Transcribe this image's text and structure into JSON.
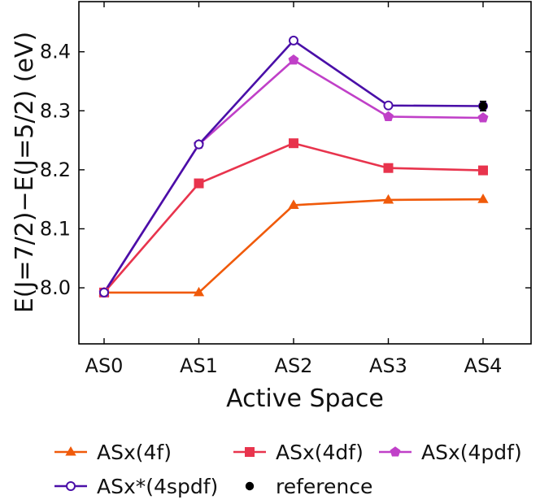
{
  "chart_data": {
    "type": "line",
    "xlabel": "Active Space",
    "ylabel": "E(J=7/2)−E(J=5/2) (eV)",
    "categories": [
      "AS0",
      "AS1",
      "AS2",
      "AS3",
      "AS4"
    ],
    "ylim": [
      7.905,
      8.485
    ],
    "yticks": [
      8.0,
      8.1,
      8.2,
      8.3,
      8.4
    ],
    "ytick_labels": [
      "8.0",
      "8.1",
      "8.2",
      "8.3",
      "8.4"
    ],
    "grid": false,
    "legend_placement": "below",
    "series": [
      {
        "name": "ASx(4f)",
        "color": "#f05a0a",
        "marker": "triangle",
        "values": [
          7.992,
          7.992,
          8.14,
          8.149,
          8.15
        ]
      },
      {
        "name": "ASx(4df)",
        "color": "#e8344d",
        "marker": "square",
        "values": [
          7.992,
          8.177,
          8.245,
          8.203,
          8.199
        ]
      },
      {
        "name": "ASx(4pdf)",
        "color": "#c040c8",
        "marker": "pentagon",
        "values": [
          7.992,
          8.243,
          8.386,
          8.29,
          8.288
        ]
      },
      {
        "name": "ASx*(4spdf)",
        "color": "#4a0fa8",
        "marker": "open-circle",
        "values": [
          7.992,
          8.243,
          8.419,
          8.309,
          8.308
        ]
      }
    ],
    "reference": {
      "name": "reference",
      "color": "#000000",
      "marker": "filled-circle",
      "category": "AS4",
      "value": 8.308,
      "error": 0.008
    }
  }
}
